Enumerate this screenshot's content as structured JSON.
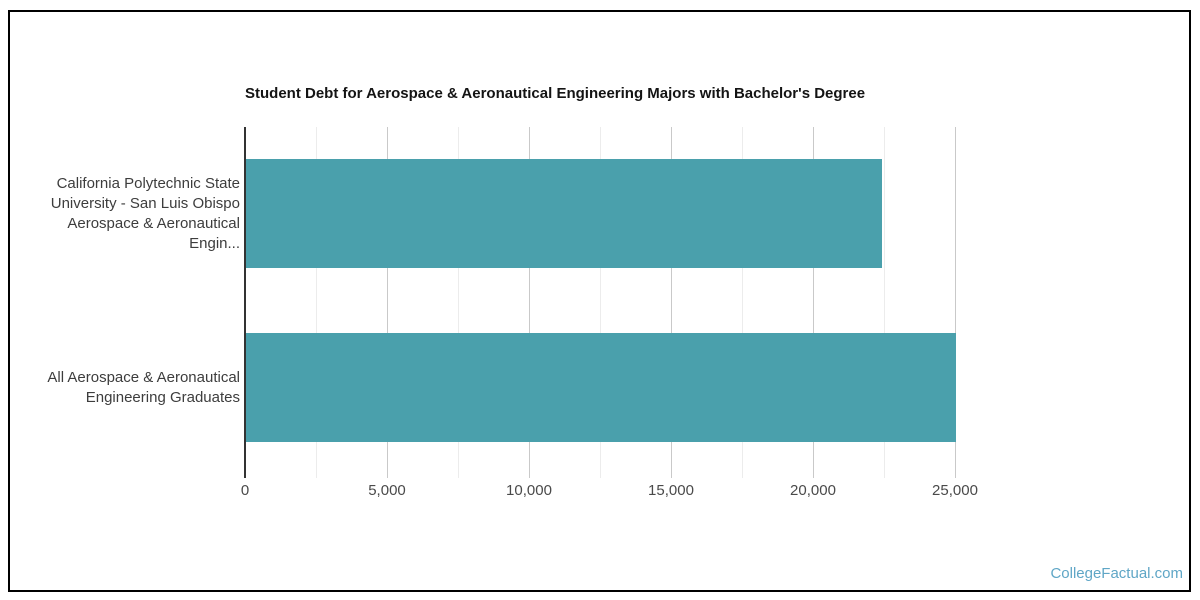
{
  "chart_data": {
    "type": "bar",
    "orientation": "horizontal",
    "title": "Student Debt for Aerospace & Aeronautical Engineering Majors with Bachelor's Degree",
    "categories": [
      "California Polytechnic State University - San Luis Obispo Aerospace & Aeronautical Engin...",
      "All Aerospace & Aeronautical Engineering Graduates"
    ],
    "category_label_lines": [
      [
        "California Polytechnic State",
        "University - San Luis Obispo",
        "Aerospace & Aeronautical Engin..."
      ],
      [
        "All Aerospace & Aeronautical",
        "Engineering Graduates"
      ]
    ],
    "values": [
      22400,
      25000
    ],
    "xlabel": "",
    "ylabel": "",
    "xlim": [
      0,
      25000
    ],
    "x_major_ticks": [
      0,
      5000,
      10000,
      15000,
      20000,
      25000
    ],
    "x_tick_labels": [
      "0",
      "5,000",
      "10,000",
      "15,000",
      "20,000",
      "25,000"
    ],
    "x_minor_step": 2500,
    "grid": true,
    "legend_position": "none",
    "bar_color": "#4aa0ac"
  },
  "watermark": {
    "label": "CollegeFactual.com",
    "color": "#5fa6c6"
  }
}
